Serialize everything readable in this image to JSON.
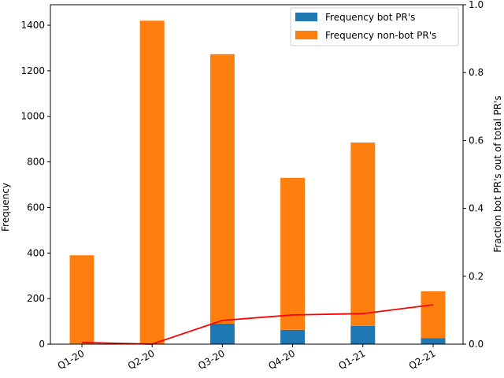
{
  "chart_data": {
    "type": "bar",
    "stacked": true,
    "categories": [
      "Q1-20",
      "Q2-20",
      "Q3-20",
      "Q4-20",
      "Q1-21",
      "Q2-21"
    ],
    "series": [
      {
        "name": "Frequency bot PR's",
        "values": [
          2,
          0,
          90,
          63,
          80,
          27
        ],
        "color": "#1f77b4",
        "axis": "left"
      },
      {
        "name": "Frequency non-bot PR's",
        "values": [
          388,
          1420,
          1183,
          667,
          805,
          205
        ],
        "color": "#ff7f0e",
        "axis": "left"
      },
      {
        "type": "line",
        "values": [
          0.005,
          0.0,
          0.07,
          0.086,
          0.09,
          0.116
        ],
        "color": "#ff0000",
        "axis": "right"
      }
    ],
    "title": "",
    "xlabel": "",
    "ylabel": "Frequency",
    "ylabel_right": "Fraction bot PR's out of total PR's",
    "ylim": [
      0,
      1490
    ],
    "ylim_right": [
      0,
      1.0
    ],
    "yticks": [
      0,
      200,
      400,
      600,
      800,
      1000,
      1200,
      1400
    ],
    "yticks_right": [
      "0.0",
      "0.2",
      "0.4",
      "0.6",
      "0.8",
      "1.0"
    ],
    "grid": false,
    "legend_position": "top-right"
  }
}
